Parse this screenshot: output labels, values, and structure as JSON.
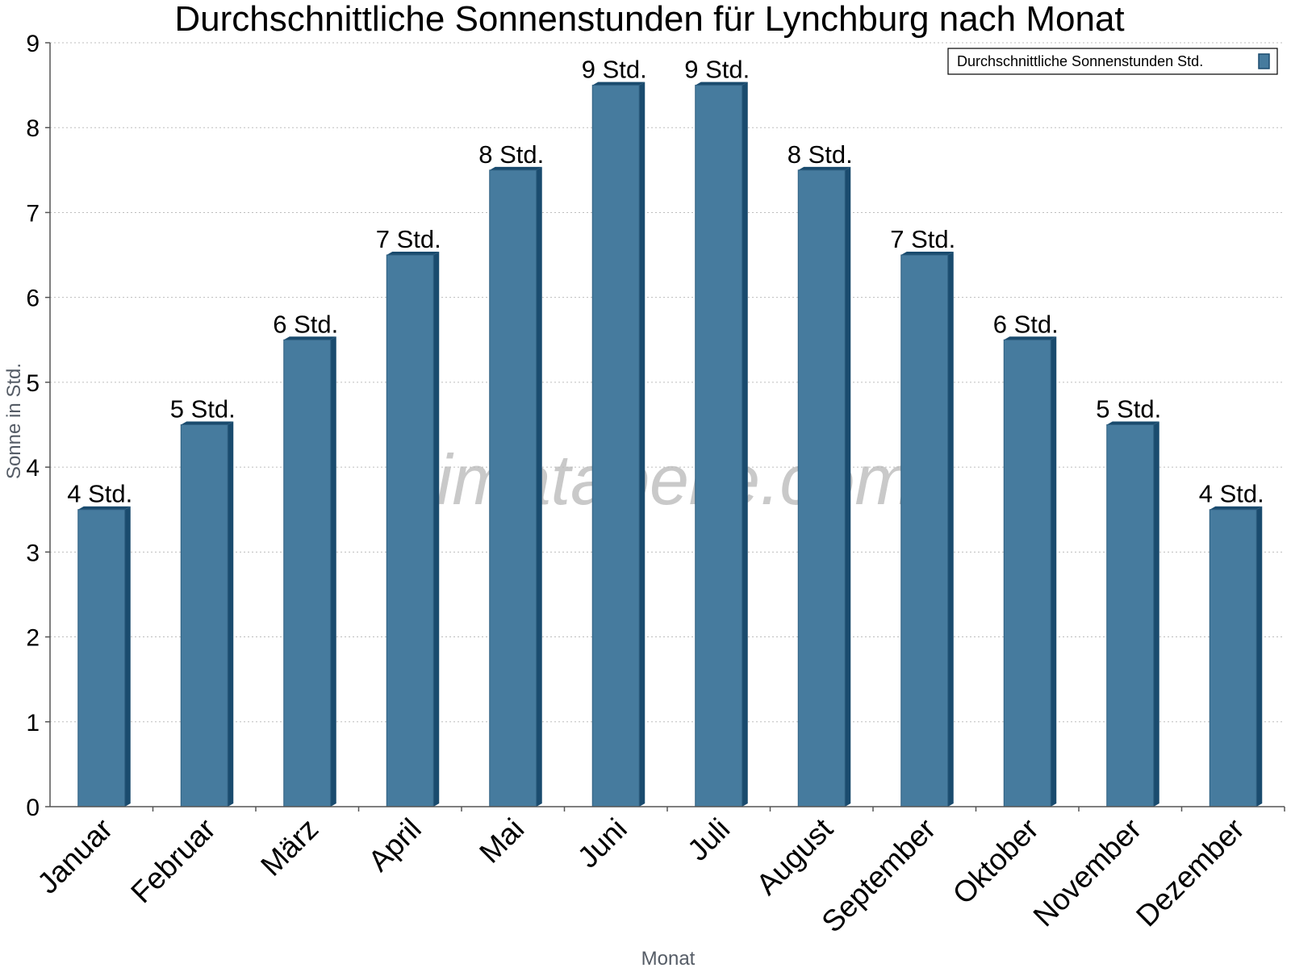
{
  "chart_data": {
    "type": "bar",
    "title": "Durchschnittliche Sonnenstunden für Lynchburg nach Monat",
    "xlabel": "Monat",
    "ylabel": "Sonne in Std.",
    "ylim": [
      0,
      9
    ],
    "yticks": [
      "0",
      "1",
      "2",
      "3",
      "4",
      "5",
      "6",
      "7",
      "8",
      "9"
    ],
    "grid": true,
    "legend_position": "top-right",
    "categories": [
      "Januar",
      "Februar",
      "März",
      "April",
      "Mai",
      "Juni",
      "Juli",
      "August",
      "September",
      "Oktober",
      "November",
      "Dezember"
    ],
    "series": [
      {
        "name": "Durchschnittliche Sonnenstunden Std.",
        "values": [
          3.5,
          4.5,
          5.5,
          6.5,
          7.5,
          8.5,
          8.5,
          7.5,
          6.5,
          5.5,
          4.5,
          3.5
        ],
        "labels": [
          "4 Std.",
          "5 Std.",
          "6 Std.",
          "7 Std.",
          "8 Std.",
          "9 Std.",
          "9 Std.",
          "8 Std.",
          "7 Std.",
          "6 Std.",
          "5 Std.",
          "4 Std."
        ],
        "color": "#467b9e",
        "side_color": "#1a4b6e"
      }
    ],
    "watermark": "klimatabelle.com"
  }
}
